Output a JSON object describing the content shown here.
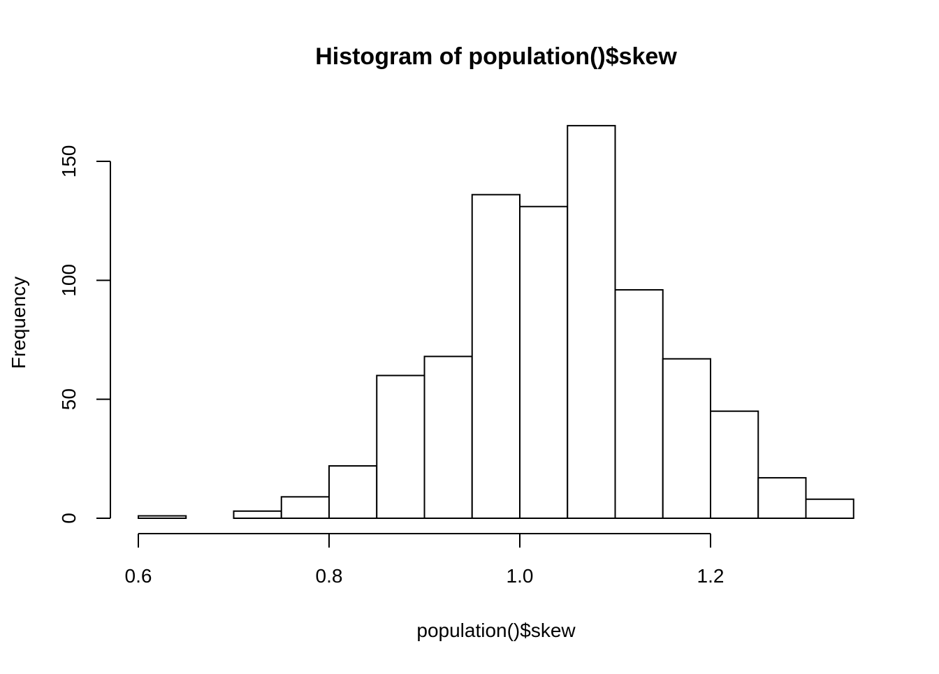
{
  "chart_data": {
    "type": "bar",
    "title": "Histogram of population()$skew",
    "xlabel": "population()$skew",
    "ylabel": "Frequency",
    "bin_edges": [
      0.6,
      0.65,
      0.7,
      0.75,
      0.8,
      0.85,
      0.9,
      0.95,
      1.0,
      1.05,
      1.1,
      1.15,
      1.2,
      1.25,
      1.3,
      1.35
    ],
    "values": [
      1,
      0,
      3,
      9,
      22,
      60,
      68,
      136,
      131,
      165,
      96,
      67,
      45,
      17,
      8
    ],
    "xlim": [
      0.6,
      1.35
    ],
    "ylim": [
      0,
      165
    ],
    "x_ticks": [
      0.6,
      0.8,
      1.0,
      1.2
    ],
    "x_tick_labels": [
      "0.6",
      "0.8",
      "1.0",
      "1.2"
    ],
    "y_ticks": [
      0,
      50,
      100,
      150
    ],
    "y_tick_labels": [
      "0",
      "50",
      "100",
      "150"
    ],
    "bar_fill": "#ffffff",
    "bar_stroke": "#000000",
    "grid": false,
    "legend": "none"
  }
}
